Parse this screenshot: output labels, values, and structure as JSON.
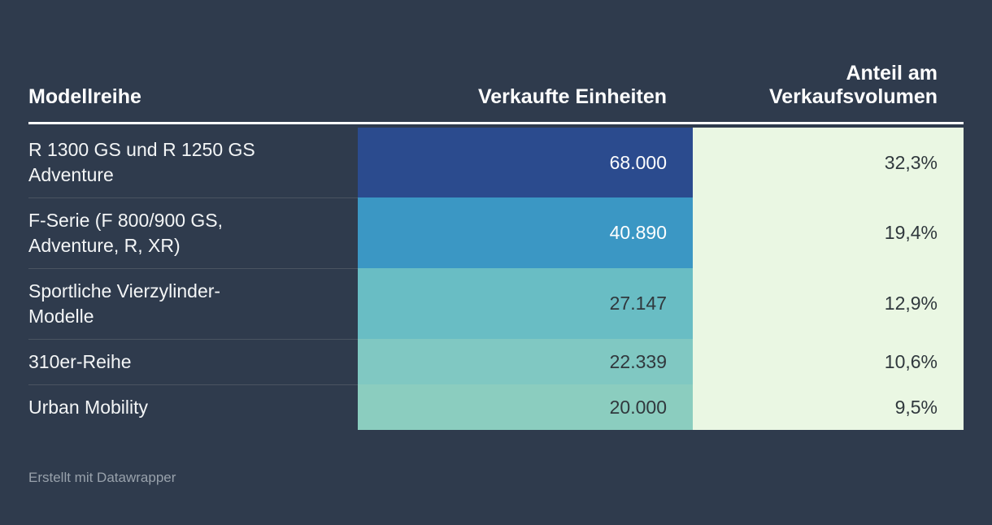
{
  "colors": {
    "background": "#2f3b4d",
    "header_text": "#ffffff",
    "header_rule": "#ffffff",
    "label_text": "#f3f5f6",
    "row_divider": "#4a5461",
    "share_bg": "#eaf7e3",
    "share_text": "#30383d",
    "footer_text": "#98a1ab"
  },
  "table": {
    "columns": {
      "model": "Modellreihe",
      "units": "Verkaufte Einheiten",
      "share": "Anteil am\nVerkaufsvolumen"
    },
    "rows": [
      {
        "model": "R 1300 GS und R 1250 GS\nAdventure",
        "units": "68.000",
        "share": "32,3%",
        "units_bg": "#2b4b8e",
        "units_color": "#ffffff"
      },
      {
        "model": "F-Serie (F 800/900 GS,\nAdventure, R, XR)",
        "units": "40.890",
        "share": "19,4%",
        "units_bg": "#3b97c4",
        "units_color": "#ffffff"
      },
      {
        "model": "Sportliche Vierzylinder-\nModelle",
        "units": "27.147",
        "share": "12,9%",
        "units_bg": "#69bdc4",
        "units_color": "#30383d"
      },
      {
        "model": "310er-Reihe",
        "units": "22.339",
        "share": "10,6%",
        "units_bg": "#80c8c2",
        "units_color": "#30383d"
      },
      {
        "model": "Urban Mobility",
        "units": "20.000",
        "share": "9,5%",
        "units_bg": "#8bcdbf",
        "units_color": "#30383d"
      }
    ]
  },
  "footer": {
    "credit": "Erstellt mit Datawrapper"
  },
  "chart_data": {
    "type": "table",
    "title": "",
    "columns": [
      "Modellreihe",
      "Verkaufte Einheiten",
      "Anteil am Verkaufsvolumen"
    ],
    "rows": [
      {
        "modellreihe": "R 1300 GS und R 1250 GS Adventure",
        "verkaufte_einheiten": 68000,
        "verkaufte_einheiten_label": "68.000",
        "anteil_am_verkaufsvolumen": "32,3%"
      },
      {
        "modellreihe": "F-Serie (F 800/900 GS, Adventure, R, XR)",
        "verkaufte_einheiten": 40890,
        "verkaufte_einheiten_label": "40.890",
        "anteil_am_verkaufsvolumen": "19,4%"
      },
      {
        "modellreihe": "Sportliche Vierzylinder-Modelle",
        "verkaufte_einheiten": 27147,
        "verkaufte_einheiten_label": "27.147",
        "anteil_am_verkaufsvolumen": "12,9%"
      },
      {
        "modellreihe": "310er-Reihe",
        "verkaufte_einheiten": 22339,
        "verkaufte_einheiten_label": "22.339",
        "anteil_am_verkaufsvolumen": "10,6%"
      },
      {
        "modellreihe": "Urban Mobility",
        "verkaufte_einheiten": 20000,
        "verkaufte_einheiten_label": "20.000",
        "anteil_am_verkaufsvolumen": "9,5%"
      }
    ],
    "layout_hints": {
      "units_column_style": "heatmap blue-to-teal descending",
      "share_column_style": "flat light green",
      "value_alignment": "right"
    },
    "credit": "Erstellt mit Datawrapper"
  }
}
